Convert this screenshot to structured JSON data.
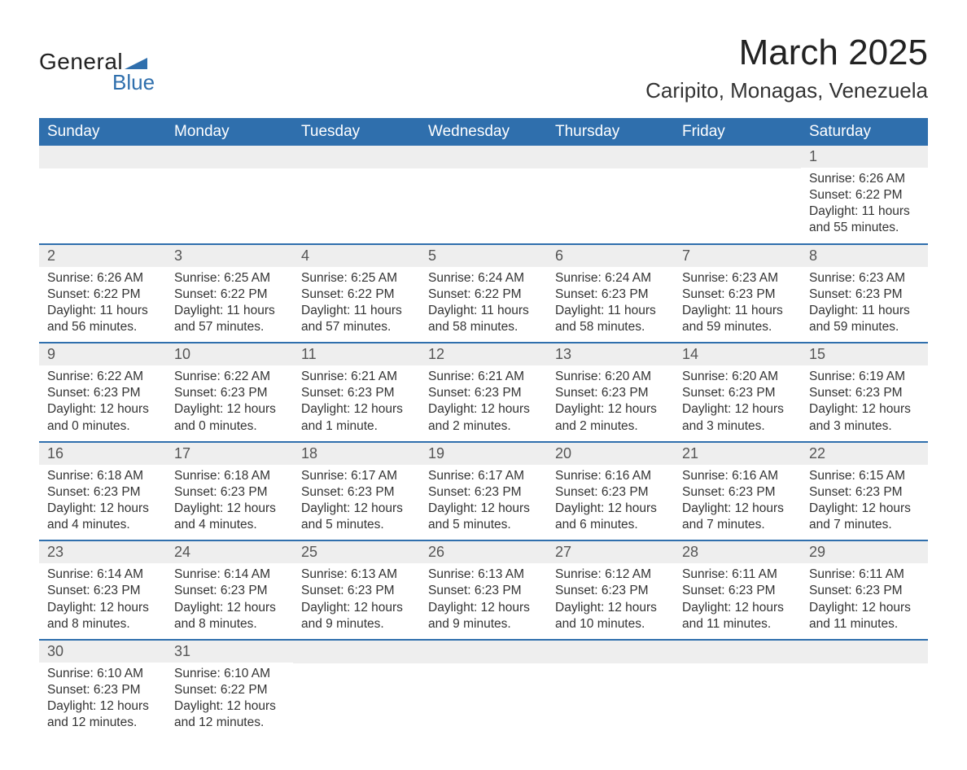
{
  "logo": {
    "text1": "General",
    "text2": "Blue"
  },
  "title": "March 2025",
  "location": "Caripito, Monagas, Venezuela",
  "colors": {
    "header_bg": "#2f6fad",
    "header_text": "#ffffff",
    "daynum_bg": "#eeeeee",
    "row_border": "#2f6fad",
    "body_text": "#333333",
    "logo_blue": "#2f6fad"
  },
  "weekdays": [
    "Sunday",
    "Monday",
    "Tuesday",
    "Wednesday",
    "Thursday",
    "Friday",
    "Saturday"
  ],
  "weeks": [
    [
      null,
      null,
      null,
      null,
      null,
      null,
      {
        "n": "1",
        "sr": "Sunrise: 6:26 AM",
        "ss": "Sunset: 6:22 PM",
        "d1": "Daylight: 11 hours",
        "d2": "and 55 minutes."
      }
    ],
    [
      {
        "n": "2",
        "sr": "Sunrise: 6:26 AM",
        "ss": "Sunset: 6:22 PM",
        "d1": "Daylight: 11 hours",
        "d2": "and 56 minutes."
      },
      {
        "n": "3",
        "sr": "Sunrise: 6:25 AM",
        "ss": "Sunset: 6:22 PM",
        "d1": "Daylight: 11 hours",
        "d2": "and 57 minutes."
      },
      {
        "n": "4",
        "sr": "Sunrise: 6:25 AM",
        "ss": "Sunset: 6:22 PM",
        "d1": "Daylight: 11 hours",
        "d2": "and 57 minutes."
      },
      {
        "n": "5",
        "sr": "Sunrise: 6:24 AM",
        "ss": "Sunset: 6:22 PM",
        "d1": "Daylight: 11 hours",
        "d2": "and 58 minutes."
      },
      {
        "n": "6",
        "sr": "Sunrise: 6:24 AM",
        "ss": "Sunset: 6:23 PM",
        "d1": "Daylight: 11 hours",
        "d2": "and 58 minutes."
      },
      {
        "n": "7",
        "sr": "Sunrise: 6:23 AM",
        "ss": "Sunset: 6:23 PM",
        "d1": "Daylight: 11 hours",
        "d2": "and 59 minutes."
      },
      {
        "n": "8",
        "sr": "Sunrise: 6:23 AM",
        "ss": "Sunset: 6:23 PM",
        "d1": "Daylight: 11 hours",
        "d2": "and 59 minutes."
      }
    ],
    [
      {
        "n": "9",
        "sr": "Sunrise: 6:22 AM",
        "ss": "Sunset: 6:23 PM",
        "d1": "Daylight: 12 hours",
        "d2": "and 0 minutes."
      },
      {
        "n": "10",
        "sr": "Sunrise: 6:22 AM",
        "ss": "Sunset: 6:23 PM",
        "d1": "Daylight: 12 hours",
        "d2": "and 0 minutes."
      },
      {
        "n": "11",
        "sr": "Sunrise: 6:21 AM",
        "ss": "Sunset: 6:23 PM",
        "d1": "Daylight: 12 hours",
        "d2": "and 1 minute."
      },
      {
        "n": "12",
        "sr": "Sunrise: 6:21 AM",
        "ss": "Sunset: 6:23 PM",
        "d1": "Daylight: 12 hours",
        "d2": "and 2 minutes."
      },
      {
        "n": "13",
        "sr": "Sunrise: 6:20 AM",
        "ss": "Sunset: 6:23 PM",
        "d1": "Daylight: 12 hours",
        "d2": "and 2 minutes."
      },
      {
        "n": "14",
        "sr": "Sunrise: 6:20 AM",
        "ss": "Sunset: 6:23 PM",
        "d1": "Daylight: 12 hours",
        "d2": "and 3 minutes."
      },
      {
        "n": "15",
        "sr": "Sunrise: 6:19 AM",
        "ss": "Sunset: 6:23 PM",
        "d1": "Daylight: 12 hours",
        "d2": "and 3 minutes."
      }
    ],
    [
      {
        "n": "16",
        "sr": "Sunrise: 6:18 AM",
        "ss": "Sunset: 6:23 PM",
        "d1": "Daylight: 12 hours",
        "d2": "and 4 minutes."
      },
      {
        "n": "17",
        "sr": "Sunrise: 6:18 AM",
        "ss": "Sunset: 6:23 PM",
        "d1": "Daylight: 12 hours",
        "d2": "and 4 minutes."
      },
      {
        "n": "18",
        "sr": "Sunrise: 6:17 AM",
        "ss": "Sunset: 6:23 PM",
        "d1": "Daylight: 12 hours",
        "d2": "and 5 minutes."
      },
      {
        "n": "19",
        "sr": "Sunrise: 6:17 AM",
        "ss": "Sunset: 6:23 PM",
        "d1": "Daylight: 12 hours",
        "d2": "and 5 minutes."
      },
      {
        "n": "20",
        "sr": "Sunrise: 6:16 AM",
        "ss": "Sunset: 6:23 PM",
        "d1": "Daylight: 12 hours",
        "d2": "and 6 minutes."
      },
      {
        "n": "21",
        "sr": "Sunrise: 6:16 AM",
        "ss": "Sunset: 6:23 PM",
        "d1": "Daylight: 12 hours",
        "d2": "and 7 minutes."
      },
      {
        "n": "22",
        "sr": "Sunrise: 6:15 AM",
        "ss": "Sunset: 6:23 PM",
        "d1": "Daylight: 12 hours",
        "d2": "and 7 minutes."
      }
    ],
    [
      {
        "n": "23",
        "sr": "Sunrise: 6:14 AM",
        "ss": "Sunset: 6:23 PM",
        "d1": "Daylight: 12 hours",
        "d2": "and 8 minutes."
      },
      {
        "n": "24",
        "sr": "Sunrise: 6:14 AM",
        "ss": "Sunset: 6:23 PM",
        "d1": "Daylight: 12 hours",
        "d2": "and 8 minutes."
      },
      {
        "n": "25",
        "sr": "Sunrise: 6:13 AM",
        "ss": "Sunset: 6:23 PM",
        "d1": "Daylight: 12 hours",
        "d2": "and 9 minutes."
      },
      {
        "n": "26",
        "sr": "Sunrise: 6:13 AM",
        "ss": "Sunset: 6:23 PM",
        "d1": "Daylight: 12 hours",
        "d2": "and 9 minutes."
      },
      {
        "n": "27",
        "sr": "Sunrise: 6:12 AM",
        "ss": "Sunset: 6:23 PM",
        "d1": "Daylight: 12 hours",
        "d2": "and 10 minutes."
      },
      {
        "n": "28",
        "sr": "Sunrise: 6:11 AM",
        "ss": "Sunset: 6:23 PM",
        "d1": "Daylight: 12 hours",
        "d2": "and 11 minutes."
      },
      {
        "n": "29",
        "sr": "Sunrise: 6:11 AM",
        "ss": "Sunset: 6:23 PM",
        "d1": "Daylight: 12 hours",
        "d2": "and 11 minutes."
      }
    ],
    [
      {
        "n": "30",
        "sr": "Sunrise: 6:10 AM",
        "ss": "Sunset: 6:23 PM",
        "d1": "Daylight: 12 hours",
        "d2": "and 12 minutes."
      },
      {
        "n": "31",
        "sr": "Sunrise: 6:10 AM",
        "ss": "Sunset: 6:22 PM",
        "d1": "Daylight: 12 hours",
        "d2": "and 12 minutes."
      },
      null,
      null,
      null,
      null,
      null
    ]
  ]
}
